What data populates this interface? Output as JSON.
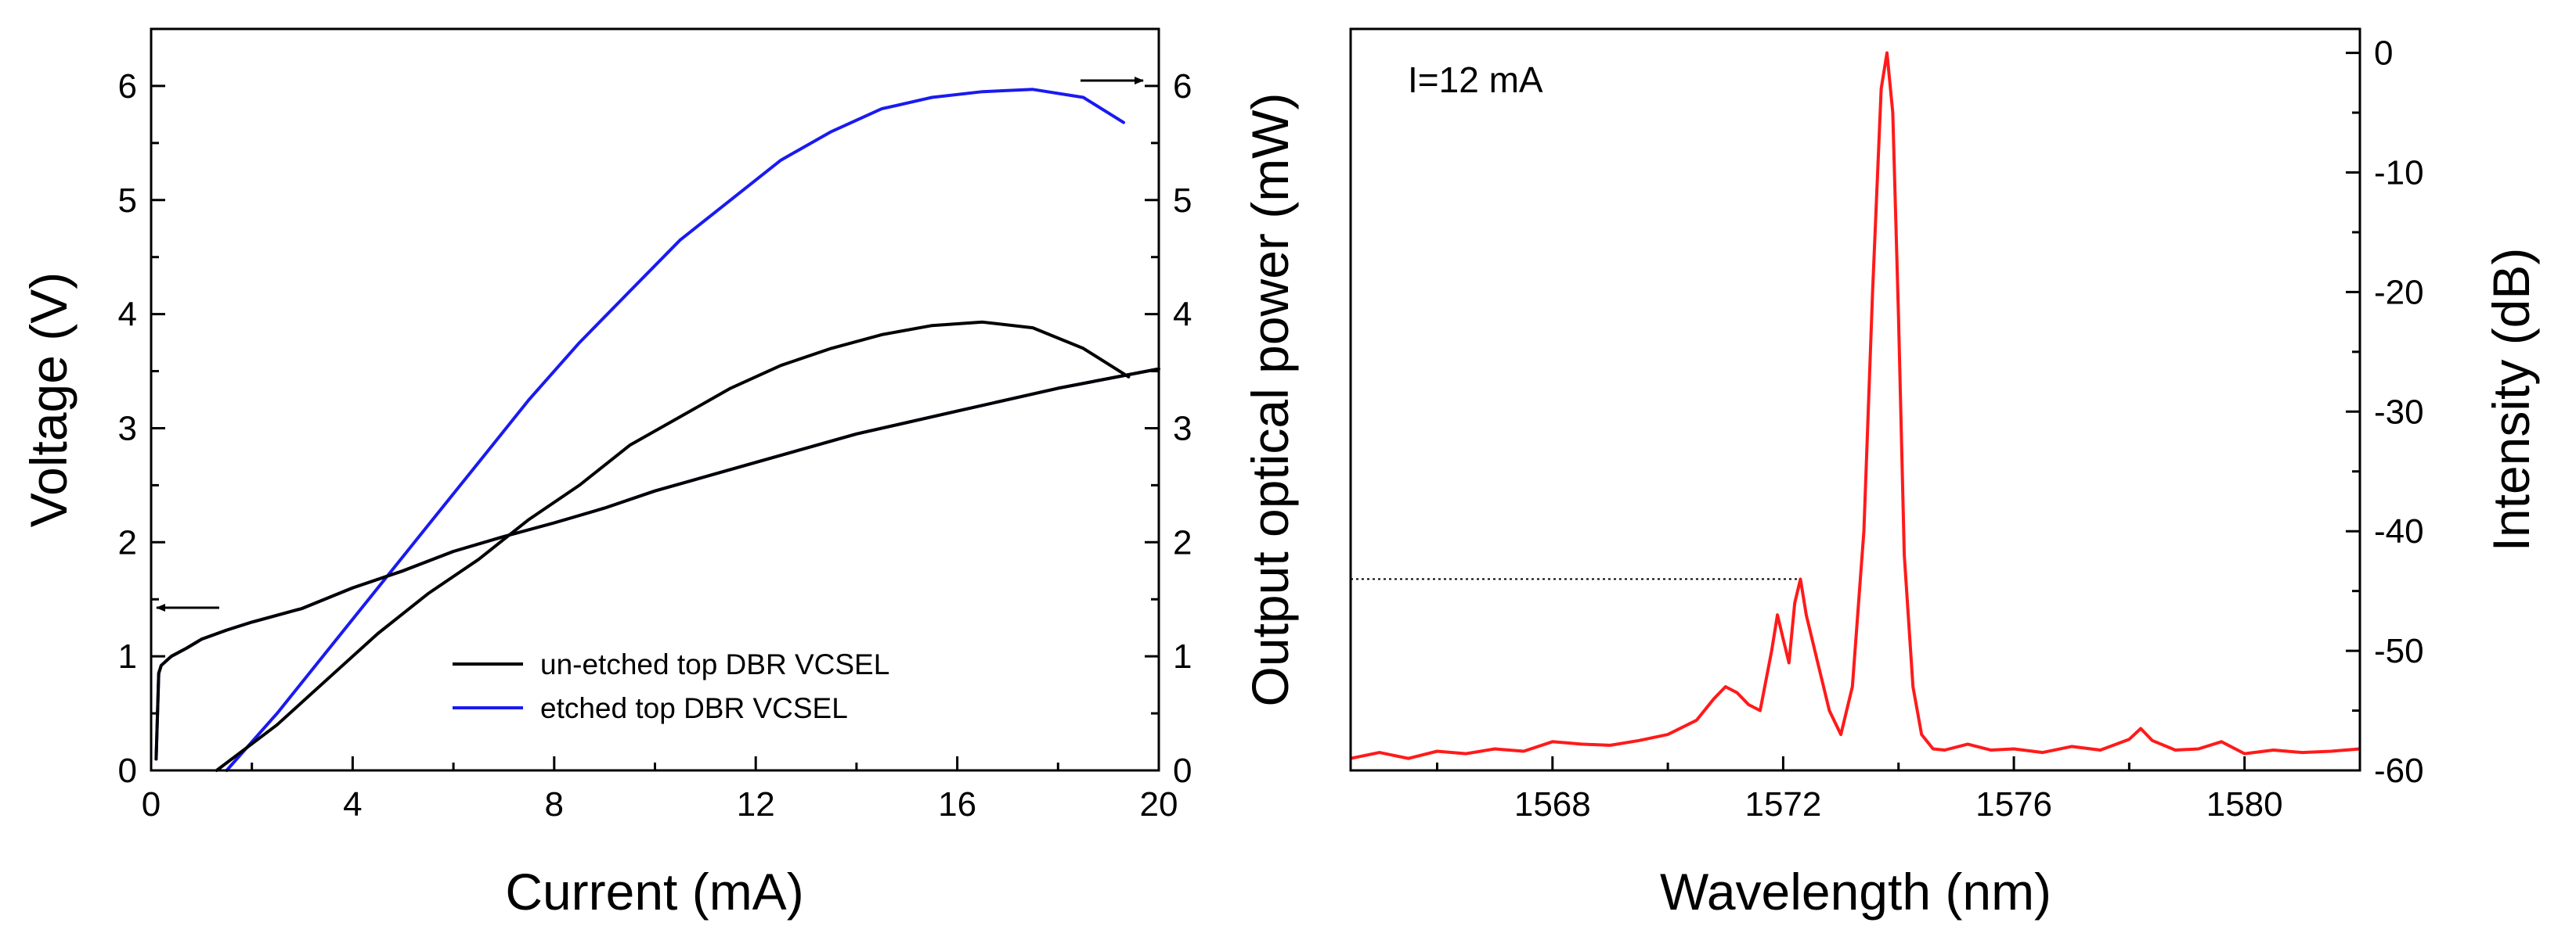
{
  "colors": {
    "black": "#000000",
    "blue": "#1a1af0",
    "red": "#ff1a1a",
    "axis": "#000000"
  },
  "chart_data": [
    {
      "type": "line",
      "xlabel": "Current (mA)",
      "ylabel": "Voltage (V)",
      "y2label": "Output optical power (mW)",
      "xlim": [
        0,
        20
      ],
      "ylim": [
        0,
        6.5
      ],
      "y2lim": [
        0,
        6.5
      ],
      "xticks": [
        "0",
        "4",
        "8",
        "12",
        "16",
        "20"
      ],
      "yticks": [
        "0",
        "1",
        "2",
        "3",
        "4",
        "5",
        "6"
      ],
      "y2ticks": [
        "0",
        "1",
        "2",
        "3",
        "4",
        "5",
        "6"
      ],
      "legend": {
        "position": "bottom-right",
        "entries": [
          "un-etched top DBR VCSEL",
          "etched top DBR VCSEL"
        ]
      },
      "arrows": [
        {
          "label": "left-axis arrow",
          "x": 1.2,
          "y": 1.45,
          "direction": "left"
        },
        {
          "label": "right-axis arrow",
          "x": 18.7,
          "y": 6.05,
          "direction": "right"
        }
      ],
      "series": [
        {
          "name": "etched top DBR VCSEL (power)",
          "color": "blue",
          "x": [
            1.5,
            2.5,
            3.5,
            4.5,
            5.5,
            6.5,
            7.5,
            8.5,
            9.5,
            10.5,
            11.5,
            12.5,
            13.5,
            14.5,
            15.5,
            16.5,
            17.5,
            18.5,
            19.3
          ],
          "y": [
            0.0,
            0.5,
            1.05,
            1.6,
            2.15,
            2.7,
            3.25,
            3.75,
            4.2,
            4.65,
            5.0,
            5.35,
            5.6,
            5.8,
            5.9,
            5.95,
            5.97,
            5.9,
            5.68
          ]
        },
        {
          "name": "un-etched top DBR VCSEL (power)",
          "color": "black",
          "x": [
            1.3,
            2.5,
            3.5,
            4.5,
            5.5,
            6.5,
            7.5,
            8.5,
            9.5,
            10.5,
            11.5,
            12.5,
            13.5,
            14.5,
            15.5,
            16.5,
            17.5,
            18.5,
            19.4
          ],
          "y": [
            0.0,
            0.4,
            0.8,
            1.2,
            1.55,
            1.85,
            2.2,
            2.5,
            2.85,
            3.1,
            3.35,
            3.55,
            3.7,
            3.82,
            3.9,
            3.93,
            3.88,
            3.7,
            3.45
          ]
        },
        {
          "name": "etched top DBR VCSEL (voltage)",
          "color": "blue",
          "x": [
            0.1,
            0.15,
            0.2,
            0.4,
            0.7,
            1,
            1.5,
            2,
            3,
            4,
            5,
            6,
            7,
            8,
            9,
            10,
            12,
            14,
            16,
            18,
            20
          ],
          "y": [
            0.1,
            0.85,
            0.92,
            1.0,
            1.07,
            1.15,
            1.23,
            1.3,
            1.42,
            1.6,
            1.75,
            1.92,
            2.05,
            2.17,
            2.3,
            2.45,
            2.7,
            2.95,
            3.15,
            3.35,
            3.52
          ]
        },
        {
          "name": "un-etched top DBR VCSEL (voltage)",
          "color": "black",
          "x": [
            0.1,
            0.15,
            0.2,
            0.4,
            0.7,
            1,
            1.5,
            2,
            3,
            4,
            5,
            6,
            7,
            8,
            9,
            10,
            12,
            14,
            16,
            18,
            20
          ],
          "y": [
            0.1,
            0.85,
            0.92,
            1.0,
            1.07,
            1.15,
            1.23,
            1.3,
            1.42,
            1.6,
            1.75,
            1.92,
            2.05,
            2.17,
            2.3,
            2.45,
            2.7,
            2.95,
            3.15,
            3.35,
            3.52
          ]
        }
      ]
    },
    {
      "type": "line",
      "annotation": "I=12 mA",
      "xlabel": "Wavelength (nm)",
      "ylabel": "Intensity (dB)",
      "xlim": [
        1564.5,
        1582
      ],
      "ylim": [
        -60,
        2
      ],
      "xticks": [
        "1568",
        "1572",
        "1576",
        "1580"
      ],
      "yticks": [
        "0",
        "-10",
        "-20",
        "-30",
        "-40",
        "-50",
        "-60"
      ],
      "reference_line": {
        "y": -44,
        "x_from": 1564.5,
        "x_to": 1572.3,
        "style": "dotted"
      },
      "series": [
        {
          "name": "spectrum",
          "color": "red",
          "x": [
            1564.5,
            1565,
            1565.5,
            1566,
            1566.5,
            1567,
            1567.5,
            1568,
            1568.5,
            1569,
            1569.5,
            1570,
            1570.5,
            1570.8,
            1571,
            1571.2,
            1571.4,
            1571.6,
            1571.8,
            1571.9,
            1572.0,
            1572.1,
            1572.2,
            1572.3,
            1572.4,
            1572.6,
            1572.8,
            1573.0,
            1573.2,
            1573.4,
            1573.55,
            1573.7,
            1573.8,
            1573.9,
            1574.0,
            1574.1,
            1574.25,
            1574.4,
            1574.6,
            1574.8,
            1575.2,
            1575.6,
            1576,
            1576.5,
            1577,
            1577.5,
            1578,
            1578.2,
            1578.4,
            1578.8,
            1579.2,
            1579.6,
            1580,
            1580.5,
            1581,
            1581.5,
            1582
          ],
          "y": [
            -59,
            -58.5,
            -59,
            -58.4,
            -58.6,
            -58.2,
            -58.4,
            -57.6,
            -57.8,
            -57.9,
            -57.5,
            -57,
            -55.8,
            -54,
            -53,
            -53.5,
            -54.5,
            -55,
            -50,
            -47,
            -49,
            -51,
            -46,
            -44,
            -47,
            -51,
            -55,
            -57,
            -53,
            -40,
            -20,
            -3,
            0,
            -5,
            -22,
            -42,
            -53,
            -57,
            -58.2,
            -58.3,
            -57.8,
            -58.3,
            -58.2,
            -58.5,
            -58,
            -58.3,
            -57.4,
            -56.5,
            -57.5,
            -58.3,
            -58.2,
            -57.6,
            -58.6,
            -58.3,
            -58.5,
            -58.4,
            -58.2
          ]
        }
      ]
    }
  ]
}
